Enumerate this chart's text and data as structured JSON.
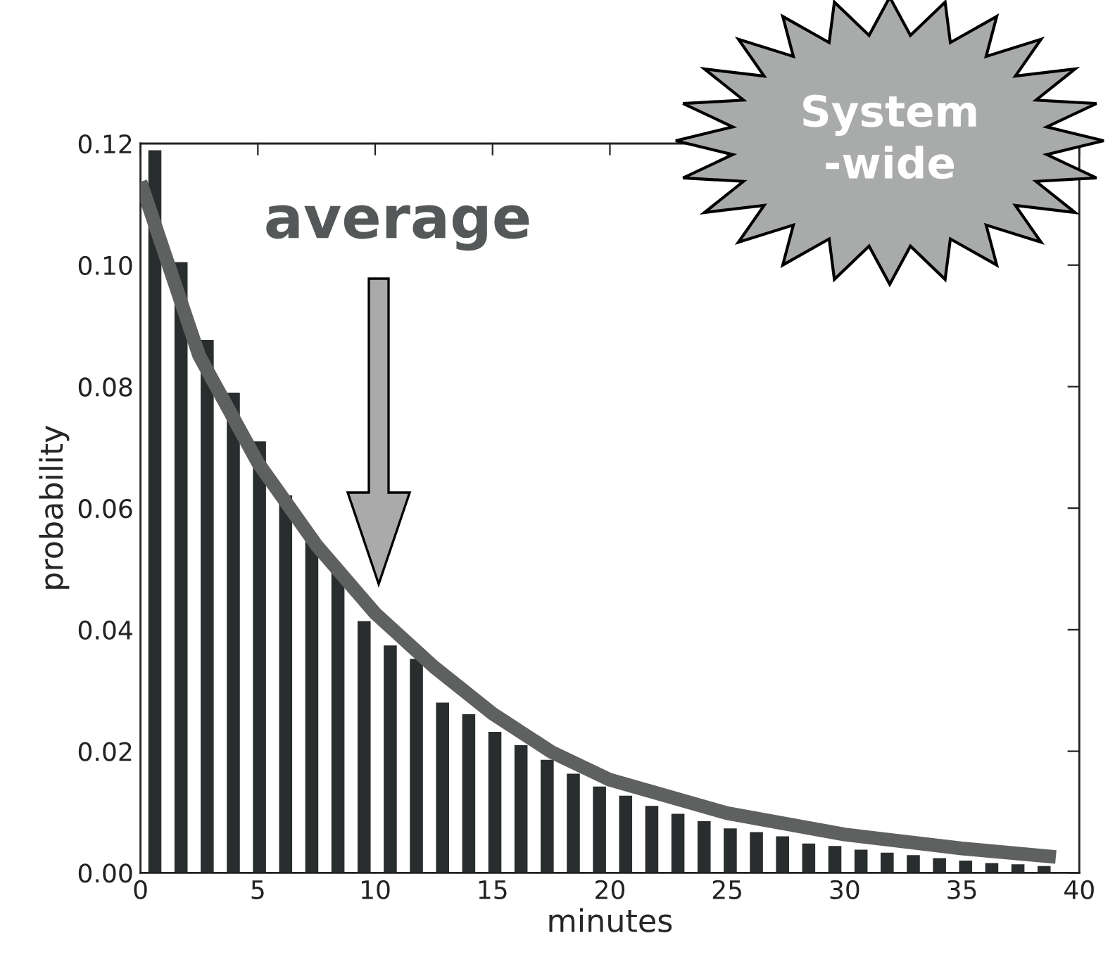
{
  "chart_data": {
    "type": "histogram",
    "xlabel": "minutes",
    "ylabel": "probability",
    "bins": [
      0,
      1.114,
      2.229,
      3.343,
      4.457,
      5.571,
      6.686,
      7.8,
      8.914,
      10.029,
      11.143,
      12.257,
      13.371,
      14.486,
      15.6,
      16.714,
      17.829,
      18.943,
      20.057,
      21.171,
      22.286,
      23.4,
      24.514,
      25.629,
      26.743,
      27.857,
      28.971,
      30.086,
      31.2,
      32.314,
      33.429,
      34.543,
      35.657,
      36.771,
      37.886,
      39
    ],
    "values": [
      0.1189,
      0.1005,
      0.0877,
      0.079,
      0.071,
      0.0621,
      0.0553,
      0.0496,
      0.0414,
      0.0374,
      0.0352,
      0.028,
      0.0261,
      0.0232,
      0.021,
      0.0186,
      0.0163,
      0.0142,
      0.0127,
      0.011,
      0.0097,
      0.0085,
      0.0073,
      0.0067,
      0.006,
      0.0048,
      0.0044,
      0.0038,
      0.0033,
      0.0029,
      0.0024,
      0.002,
      0.0016,
      0.0014,
      0.0011
    ],
    "color": "#2a2d2e",
    "series": [
      {
        "type": "line",
        "color": "#5f6161",
        "x": [
          0,
          2.5,
          5,
          7.5,
          10,
          12.5,
          15,
          17.5,
          20,
          25,
          30,
          35,
          39
        ],
        "values": [
          0.1137,
          0.0851,
          0.0675,
          0.0539,
          0.0427,
          0.0339,
          0.0262,
          0.0199,
          0.0153,
          0.0098,
          0.0063,
          0.004,
          0.0026
        ]
      }
    ],
    "xlim": [
      0,
      40
    ],
    "xticks": [
      0,
      5,
      10,
      15,
      20,
      25,
      30,
      35,
      40
    ],
    "ylim": [
      0,
      0.12
    ],
    "yticks": [
      {
        "value": 0,
        "label": "0.00"
      },
      {
        "value": 0.02,
        "label": "0.02"
      },
      {
        "value": 0.04,
        "label": "0.04"
      },
      {
        "value": 0.06,
        "label": "0.06"
      },
      {
        "value": 0.08,
        "label": "0.08"
      },
      {
        "value": 0.1,
        "label": "0.10"
      },
      {
        "value": 0.12,
        "label": "0.12"
      }
    ],
    "grid": false,
    "legend": false,
    "annotations": [
      "average",
      "System\n-wide"
    ]
  }
}
